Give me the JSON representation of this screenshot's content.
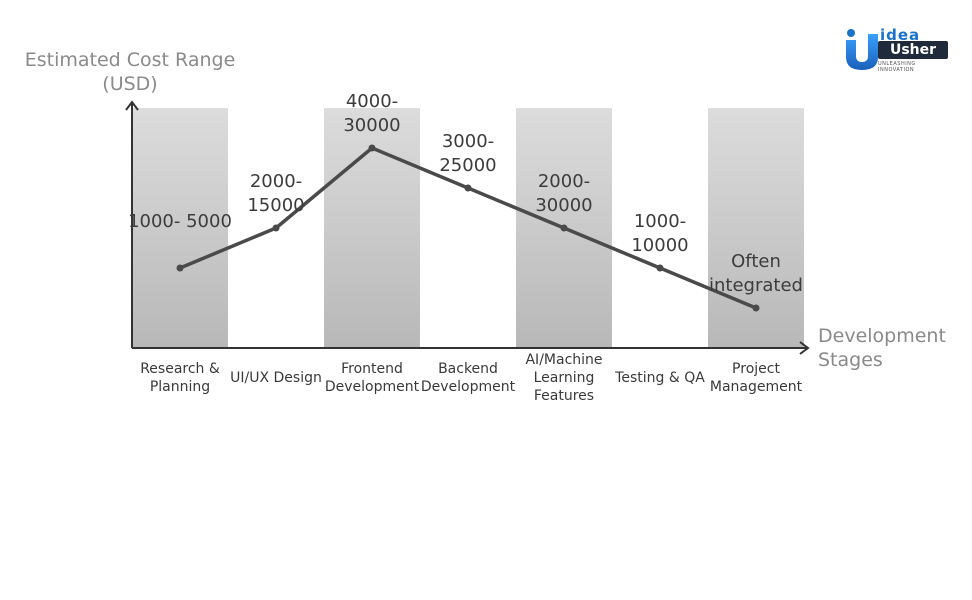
{
  "chart_data": {
    "type": "line",
    "ylabel": "Estimated Cost Range (USD)",
    "xlabel": "Development Stages",
    "categories": [
      "Research & Planning",
      "UI/UX Design",
      "Frontend Development",
      "Backend Development",
      "AI/Machine Learning Features",
      "Testing & QA",
      "Project Management"
    ],
    "point_labels": [
      "1000- 5000",
      "2000- 15000",
      "4000- 30000",
      "3000- 25000",
      "2000- 30000",
      "1000- 10000",
      "Often integrated"
    ],
    "values": [
      2,
      3,
      5,
      4,
      3,
      2,
      1
    ],
    "ylim": [
      0,
      6
    ],
    "grid": false,
    "colors": {
      "line": "#4a4a4a",
      "band_top": "#dcdcdc",
      "band_bottom": "#b8b8b8",
      "axis": "#333333"
    }
  },
  "logo": {
    "top_word": "idea",
    "bottom_word": "Usher",
    "tagline": "UNLEASHING INNOVATION",
    "colors": {
      "primary": "#1a73c8",
      "dark": "#1f2b3a"
    }
  }
}
